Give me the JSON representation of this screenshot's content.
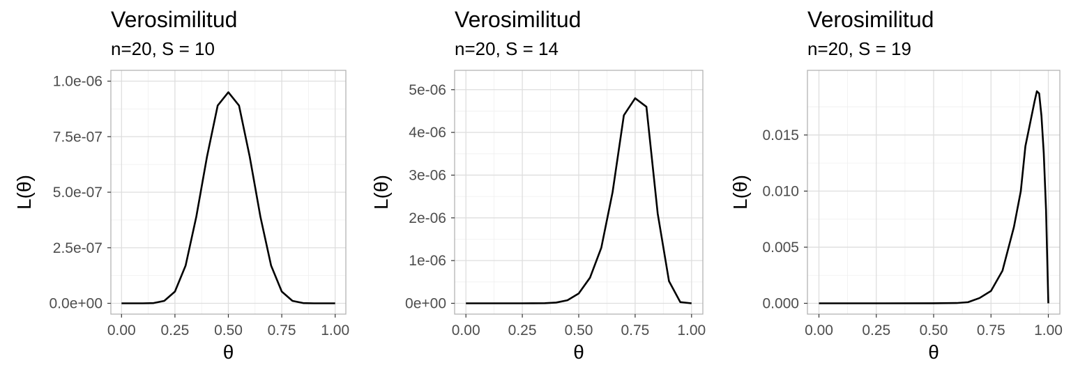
{
  "chart_data": [
    {
      "type": "line",
      "title": "Verosimilitud",
      "subtitle": "n=20, S = 10",
      "xlabel": "θ",
      "ylabel": "L(θ)",
      "n": 20,
      "S": 10,
      "xlim": [
        0,
        1
      ],
      "ylim": [
        0,
        1e-06
      ],
      "x_ticks": [
        0,
        0.25,
        0.5,
        0.75,
        1.0
      ],
      "x_tick_labels": [
        "0.00",
        "0.25",
        "0.50",
        "0.75",
        "1.00"
      ],
      "y_ticks": [
        0,
        2.5e-07,
        5e-07,
        7.5e-07,
        1e-06
      ],
      "y_tick_labels": [
        "0.0e+00",
        "2.5e-07",
        "5.0e-07",
        "7.5e-07",
        "1.0e-06"
      ],
      "grid": true,
      "series": [
        {
          "x": [
            0,
            0.05,
            0.1,
            0.15,
            0.2,
            0.25,
            0.3,
            0.35,
            0.4,
            0.45,
            0.5,
            0.55,
            0.6,
            0.65,
            0.7,
            0.75,
            0.8,
            0.85,
            0.9,
            0.95,
            1.0
          ],
          "y": [
            0,
            0,
            3.5e-11,
            1.1e-09,
            1.1e-08,
            5.3e-08,
            1.7e-07,
            3.9e-07,
            6.6e-07,
            8.9e-07,
            9.5e-07,
            8.9e-07,
            6.6e-07,
            3.9e-07,
            1.7e-07,
            5.3e-08,
            1.1e-08,
            1.1e-09,
            3.5e-11,
            0,
            0
          ]
        }
      ]
    },
    {
      "type": "line",
      "title": "Verosimilitud",
      "subtitle": "n=20, S = 14",
      "xlabel": "θ",
      "ylabel": "L(θ)",
      "n": 20,
      "S": 14,
      "xlim": [
        0,
        1
      ],
      "ylim": [
        0,
        5.2e-06
      ],
      "x_ticks": [
        0,
        0.25,
        0.5,
        0.75,
        1.0
      ],
      "x_tick_labels": [
        "0.00",
        "0.25",
        "0.50",
        "0.75",
        "1.00"
      ],
      "y_ticks": [
        0,
        1e-06,
        2e-06,
        3e-06,
        4e-06,
        5e-06
      ],
      "y_tick_labels": [
        "0e+00",
        "1e-06",
        "2e-06",
        "3e-06",
        "4e-06",
        "5e-06"
      ],
      "grid": true,
      "series": [
        {
          "x": [
            0,
            0.05,
            0.1,
            0.15,
            0.2,
            0.25,
            0.3,
            0.35,
            0.4,
            0.45,
            0.5,
            0.55,
            0.6,
            0.65,
            0.7,
            0.75,
            0.8,
            0.85,
            0.9,
            0.95,
            1.0
          ],
          "y": [
            0,
            0,
            0,
            0,
            1.7e-12,
            4.4e-11,
            5.2e-10,
            3.5e-09,
            1.7e-08,
            7.1e-08,
            2.3e-07,
            6e-07,
            1.3e-06,
            2.6e-06,
            4.4e-06,
            4.8e-06,
            4.6e-06,
            2.1e-06,
            5.2e-07,
            2.8e-08,
            0
          ]
        }
      ]
    },
    {
      "type": "line",
      "title": "Verosimilitud",
      "subtitle": "n=20, S = 19",
      "xlabel": "θ",
      "ylabel": "L(θ)",
      "n": 20,
      "S": 19,
      "xlim": [
        0,
        1
      ],
      "ylim": [
        0,
        0.0198
      ],
      "x_ticks": [
        0,
        0.25,
        0.5,
        0.75,
        1.0
      ],
      "x_tick_labels": [
        "0.00",
        "0.25",
        "0.50",
        "0.75",
        "1.00"
      ],
      "y_ticks": [
        0,
        0.005,
        0.01,
        0.015
      ],
      "y_tick_labels": [
        "0.000",
        "0.005",
        "0.010",
        "0.015"
      ],
      "grid": true,
      "series": [
        {
          "x": [
            0,
            0.5,
            0.6,
            0.65,
            0.7,
            0.75,
            0.8,
            0.85,
            0.88,
            0.9,
            0.92,
            0.94,
            0.95,
            0.96,
            0.97,
            0.98,
            0.99,
            1.0
          ],
          "y": [
            0,
            1e-06,
            2.4e-05,
            0.0001,
            0.00047,
            0.0011,
            0.0029,
            0.0068,
            0.01,
            0.014,
            0.016,
            0.018,
            0.0189,
            0.0187,
            0.0167,
            0.0134,
            0.0083,
            0
          ]
        }
      ]
    }
  ]
}
